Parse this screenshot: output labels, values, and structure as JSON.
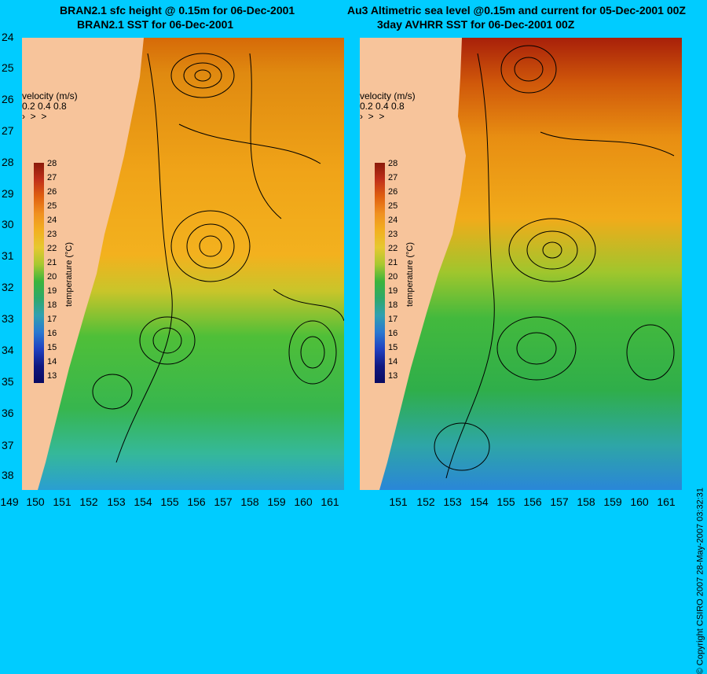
{
  "left_title": {
    "line1": "BRAN2.1 sfc height @ 0.15m for 06-Dec-2001",
    "line2": "BRAN2.1 SST for 06-Dec-2001"
  },
  "right_title": {
    "line1": "Au3 Altimetric sea level  @0.15m and current for 05-Dec-2001 00Z",
    "line2": "3day AVHRR SST for 06-Dec-2001 00Z"
  },
  "y_ticks": [
    "24",
    "25",
    "26",
    "27",
    "28",
    "29",
    "30",
    "31",
    "32",
    "33",
    "34",
    "35",
    "36",
    "37",
    "38"
  ],
  "x_ticks": [
    "149",
    "150",
    "151",
    "152",
    "153",
    "154",
    "155",
    "156",
    "157",
    "158",
    "159",
    "160",
    "161"
  ],
  "x_ticks_right": [
    "151",
    "152",
    "153",
    "154",
    "155",
    "156",
    "157",
    "158",
    "159",
    "160",
    "161"
  ],
  "velocity_legend": {
    "title": "velocity (m/s)",
    "values": "0.2 0.4 0.8"
  },
  "colorbar": {
    "title": "temperature (°C)",
    "levels": [
      "28",
      "27",
      "26",
      "25",
      "24",
      "23",
      "22",
      "21",
      "20",
      "19",
      "18",
      "17",
      "16",
      "15",
      "14",
      "13"
    ]
  },
  "copyright": "© Copyright CSIRO 2007   28-May-2007 03:32:31",
  "colors": {
    "background": "#00ccff",
    "land": "#f7c49b",
    "warm": "#d97a0a",
    "cool": "#2fb54a"
  }
}
